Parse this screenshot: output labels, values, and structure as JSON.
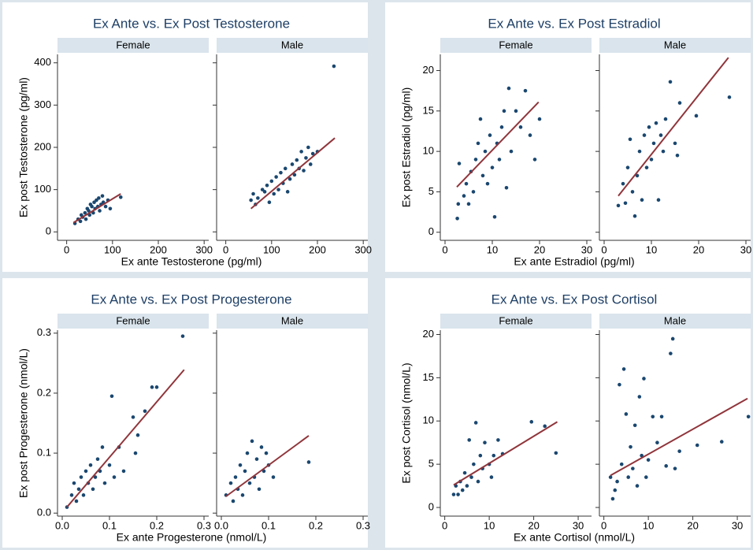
{
  "chart_data": [
    {
      "type": "scatter",
      "title": "Ex Ante vs. Ex Post Testosterone",
      "x_label": "Ex ante Testosterone (pg/ml)",
      "y_label": "Ex post Testosterone (pg/ml)",
      "xlim": [
        -20,
        310
      ],
      "xticks": [
        0,
        100,
        200,
        300
      ],
      "ylim": [
        -20,
        420
      ],
      "yticks": [
        0,
        100,
        200,
        300,
        400
      ],
      "point_color": "#1a476f",
      "line_color": "#90353b",
      "facets": [
        {
          "name": "Female",
          "x": [
            18,
            25,
            30,
            32,
            35,
            40,
            42,
            45,
            48,
            50,
            52,
            55,
            58,
            60,
            62,
            65,
            68,
            70,
            72,
            75,
            78,
            80,
            85,
            90,
            95,
            118
          ],
          "y": [
            20,
            30,
            25,
            40,
            35,
            45,
            30,
            55,
            50,
            40,
            65,
            60,
            45,
            70,
            55,
            75,
            60,
            80,
            50,
            65,
            85,
            70,
            60,
            75,
            55,
            82
          ],
          "fit": {
            "x": [
              15,
              118
            ],
            "y": [
              22,
              90
            ]
          }
        },
        {
          "name": "Male",
          "x": [
            55,
            60,
            65,
            70,
            80,
            85,
            90,
            95,
            100,
            105,
            110,
            115,
            120,
            125,
            130,
            135,
            140,
            145,
            150,
            155,
            160,
            165,
            170,
            175,
            180,
            185,
            190,
            200,
            236
          ],
          "y": [
            75,
            90,
            65,
            80,
            100,
            95,
            110,
            70,
            120,
            90,
            130,
            100,
            140,
            115,
            150,
            95,
            125,
            160,
            135,
            170,
            150,
            190,
            145,
            175,
            200,
            160,
            185,
            190,
            392
          ],
          "fit": {
            "x": [
              55,
              238
            ],
            "y": [
              55,
              222
            ]
          }
        }
      ]
    },
    {
      "type": "scatter",
      "title": "Ex Ante vs. Ex Post Estradiol",
      "x_label": "Ex ante Estradiol (pg/ml)",
      "y_label": "Ex post Estradiol (pg/ml)",
      "xlim": [
        -1,
        31
      ],
      "xticks": [
        0,
        10,
        20,
        30
      ],
      "ylim": [
        -1,
        22
      ],
      "yticks": [
        0,
        5,
        10,
        15,
        20
      ],
      "point_color": "#1a476f",
      "line_color": "#90353b",
      "facets": [
        {
          "name": "Female",
          "x": [
            2.6,
            2.8,
            3,
            4,
            4.5,
            5,
            5.5,
            6,
            6.5,
            7,
            7.5,
            8,
            8.5,
            9,
            9.5,
            10,
            10.5,
            11,
            11.5,
            12,
            12.5,
            13,
            13.5,
            14,
            15,
            16,
            17,
            18,
            19,
            20
          ],
          "y": [
            1.7,
            3.5,
            8.5,
            4.5,
            6,
            3.5,
            7.5,
            5,
            9,
            11,
            14,
            7,
            10,
            6,
            12,
            8,
            1.9,
            11,
            9,
            13,
            15,
            5.5,
            17.8,
            10,
            15,
            13,
            17.5,
            12,
            9,
            14
          ],
          "fit": {
            "x": [
              2.5,
              19.8
            ],
            "y": [
              5.6,
              16.1
            ]
          }
        },
        {
          "name": "Male",
          "x": [
            3,
            4,
            4.5,
            5,
            5.5,
            6,
            6.5,
            7,
            7.5,
            8,
            8.5,
            9,
            9.5,
            10,
            10.5,
            11,
            11.5,
            12,
            12.5,
            13,
            14,
            15,
            15.5,
            16,
            19.5,
            26.5
          ],
          "y": [
            3.3,
            6,
            3.6,
            8,
            11.5,
            5,
            2,
            7,
            10,
            4,
            12,
            8,
            13,
            9,
            11,
            13.5,
            4,
            12,
            10,
            14,
            18.6,
            11,
            9.5,
            16,
            14.4,
            16.7
          ],
          "fit": {
            "x": [
              3,
              26.3
            ],
            "y": [
              4.5,
              21.6
            ]
          }
        }
      ]
    },
    {
      "type": "scatter",
      "title": "Ex Ante vs. Ex Post Progesterone",
      "x_label": "Ex ante Progesterone (nmol/L)",
      "y_label": "Ex post Progesterone (nmol/L)",
      "xlim": [
        -0.01,
        0.31
      ],
      "xticks": [
        {
          "value": 0,
          "label": "0.0"
        },
        0.1,
        0.2,
        0.3
      ],
      "ylim": [
        -0.005,
        0.305
      ],
      "yticks": [
        {
          "value": 0,
          "label": "0.0"
        },
        0.1,
        0.2,
        0.3
      ],
      "point_color": "#1a476f",
      "line_color": "#90353b",
      "facets": [
        {
          "name": "Female",
          "x": [
            0.01,
            0.02,
            0.025,
            0.03,
            0.035,
            0.04,
            0.045,
            0.05,
            0.055,
            0.06,
            0.065,
            0.07,
            0.075,
            0.08,
            0.085,
            0.09,
            0.1,
            0.105,
            0.11,
            0.12,
            0.13,
            0.15,
            0.155,
            0.16,
            0.175,
            0.19,
            0.2,
            0.255
          ],
          "y": [
            0.01,
            0.03,
            0.05,
            0.02,
            0.04,
            0.06,
            0.03,
            0.07,
            0.05,
            0.08,
            0.04,
            0.06,
            0.09,
            0.07,
            0.11,
            0.05,
            0.08,
            0.195,
            0.06,
            0.11,
            0.07,
            0.16,
            0.1,
            0.13,
            0.17,
            0.21,
            0.21,
            0.295
          ],
          "fit": {
            "x": [
              0.01,
              0.258
            ],
            "y": [
              0.01,
              0.239
            ]
          }
        },
        {
          "name": "Male",
          "x": [
            0.01,
            0.02,
            0.025,
            0.03,
            0.035,
            0.04,
            0.045,
            0.05,
            0.055,
            0.06,
            0.065,
            0.07,
            0.075,
            0.08,
            0.085,
            0.09,
            0.095,
            0.1,
            0.11,
            0.185
          ],
          "y": [
            0.03,
            0.05,
            0.02,
            0.06,
            0.04,
            0.08,
            0.03,
            0.07,
            0.1,
            0.05,
            0.12,
            0.06,
            0.09,
            0.04,
            0.11,
            0.07,
            0.1,
            0.08,
            0.06,
            0.085
          ],
          "fit": {
            "x": [
              0.01,
              0.185
            ],
            "y": [
              0.028,
              0.129
            ]
          }
        }
      ]
    },
    {
      "type": "scatter",
      "title": "Ex Ante vs. Ex Post Cortisol",
      "x_label": "Ex ante Cortisol (nmol/L)",
      "y_label": "Ex post Cortisol (nmol/L)",
      "xlim": [
        -1,
        33
      ],
      "xticks": [
        0,
        10,
        20,
        30
      ],
      "ylim": [
        -1,
        20.5
      ],
      "yticks": [
        0,
        5,
        10,
        15,
        20
      ],
      "point_color": "#1a476f",
      "line_color": "#90353b",
      "facets": [
        {
          "name": "Female",
          "x": [
            2,
            2.5,
            3,
            3.5,
            4,
            4.5,
            5,
            5.5,
            6,
            6.5,
            7,
            7.5,
            8,
            8.5,
            9,
            10,
            10.5,
            11,
            12,
            13,
            19.5,
            22.5,
            25
          ],
          "y": [
            1.5,
            2.5,
            1.5,
            3,
            2,
            4,
            2.5,
            7.8,
            3.5,
            5,
            9.8,
            3,
            6,
            4.5,
            7.5,
            5,
            3.5,
            6,
            7.8,
            6.2,
            9.9,
            9.4,
            6.3
          ],
          "fit": {
            "x": [
              2,
              25.3
            ],
            "y": [
              2.6,
              9.9
            ]
          }
        },
        {
          "name": "Male",
          "x": [
            1.5,
            2,
            2.5,
            3,
            3.5,
            4,
            4.5,
            5,
            5.5,
            6,
            6.5,
            7,
            7.5,
            8,
            8.5,
            9,
            9.5,
            10,
            11,
            12,
            13,
            14,
            15,
            15.5,
            16,
            17,
            21,
            26.5,
            32.5
          ],
          "y": [
            3.5,
            1,
            2,
            3,
            14.2,
            5,
            16,
            10.8,
            3.5,
            7,
            4.5,
            9.5,
            2.5,
            12.8,
            6,
            14.9,
            3.5,
            5.5,
            10.5,
            7.5,
            10.5,
            4.8,
            17.8,
            19.5,
            4.5,
            6.5,
            7.2,
            7.6,
            10.5
          ],
          "fit": {
            "x": [
              1.5,
              32.3
            ],
            "y": [
              3.7,
              12.6
            ]
          }
        }
      ]
    }
  ]
}
